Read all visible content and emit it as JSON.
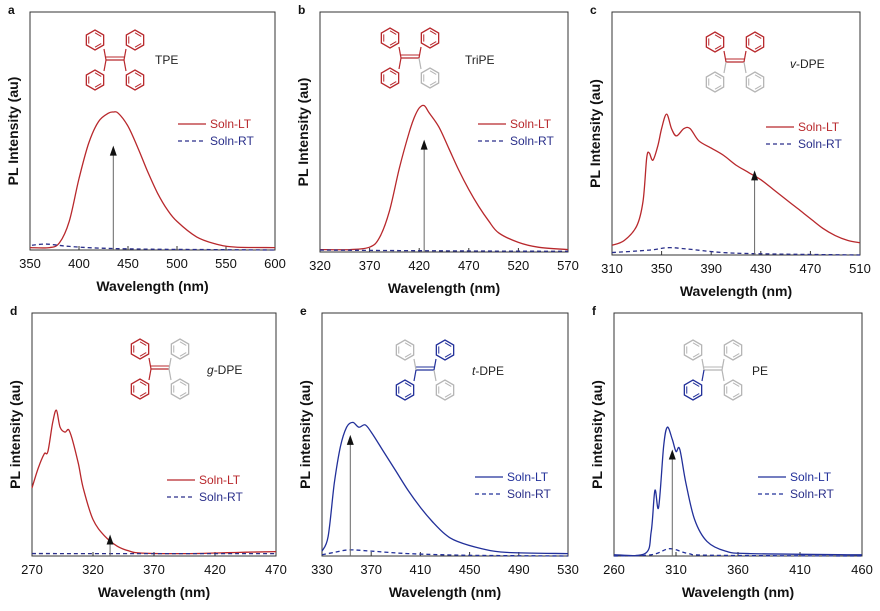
{
  "chart_data": [
    {
      "panel": "a",
      "type": "line",
      "compound": "TPE",
      "xlabel": "Wavelength (nm)",
      "ylabel": "PL Intensity (au)",
      "xlim": [
        350,
        600
      ],
      "xticks": [
        350,
        400,
        450,
        500,
        550,
        600
      ],
      "ylim": [
        0,
        1
      ],
      "series": [
        {
          "name": "Soln-LT",
          "style": "solid",
          "color": "#b8282c",
          "x": [
            350,
            370,
            380,
            390,
            400,
            410,
            420,
            430,
            435,
            440,
            450,
            460,
            470,
            480,
            490,
            500,
            520,
            540,
            560,
            600
          ],
          "y": [
            0.01,
            0.01,
            0.03,
            0.12,
            0.3,
            0.45,
            0.54,
            0.575,
            0.58,
            0.575,
            0.52,
            0.43,
            0.33,
            0.24,
            0.17,
            0.12,
            0.055,
            0.025,
            0.012,
            0.01
          ]
        },
        {
          "name": "Soln-RT",
          "style": "dashed",
          "color": "#2a2f8a",
          "x": [
            352,
            365,
            375,
            390,
            420,
            460,
            520,
            600
          ],
          "y": [
            0.02,
            0.025,
            0.022,
            0.015,
            0.008,
            0.004,
            0.002,
            0.0
          ]
        }
      ],
      "arrow_x": 435,
      "arrow_top": 0.43
    },
    {
      "panel": "b",
      "type": "line",
      "compound": "TriPE",
      "xlabel": "Wavelength (nm)",
      "ylabel": "PL Intensity (au)",
      "xlim": [
        320,
        570
      ],
      "xticks": [
        320,
        370,
        420,
        470,
        520,
        570
      ],
      "ylim": [
        0,
        1
      ],
      "series": [
        {
          "name": "Soln-LT",
          "style": "solid",
          "color": "#b8282c",
          "x": [
            320,
            350,
            370,
            380,
            390,
            400,
            410,
            415,
            420,
            425,
            430,
            440,
            450,
            460,
            470,
            480,
            490,
            500,
            520,
            540,
            570
          ],
          "y": [
            0.01,
            0.01,
            0.02,
            0.06,
            0.17,
            0.35,
            0.5,
            0.56,
            0.6,
            0.61,
            0.58,
            0.52,
            0.43,
            0.34,
            0.26,
            0.19,
            0.13,
            0.08,
            0.04,
            0.02,
            0.01
          ]
        },
        {
          "name": "Soln-RT",
          "style": "dashed",
          "color": "#2a2f8a",
          "x": [
            320,
            400,
            480,
            570
          ],
          "y": [
            0.008,
            0.006,
            0.004,
            0.003
          ]
        }
      ],
      "arrow_x": 425,
      "arrow_top": 0.46
    },
    {
      "panel": "c",
      "type": "line",
      "compound": "DPE",
      "compound_prefix": "v",
      "xlabel": "Wavelength (nm)",
      "ylabel": "PL Intensity (au)",
      "xlim": [
        310,
        510
      ],
      "xticks": [
        310,
        350,
        390,
        430,
        470,
        510
      ],
      "ylim": [
        0,
        1
      ],
      "series": [
        {
          "name": "Soln-LT",
          "style": "solid",
          "color": "#b8282c",
          "x": [
            310,
            320,
            330,
            335,
            338,
            340,
            343,
            347,
            350,
            354,
            358,
            362,
            368,
            373,
            380,
            390,
            400,
            410,
            420,
            430,
            440,
            450,
            460,
            470,
            480,
            490,
            500,
            510
          ],
          "y": [
            0.04,
            0.06,
            0.12,
            0.22,
            0.4,
            0.42,
            0.39,
            0.45,
            0.52,
            0.58,
            0.52,
            0.49,
            0.52,
            0.52,
            0.47,
            0.44,
            0.41,
            0.37,
            0.34,
            0.31,
            0.27,
            0.23,
            0.19,
            0.15,
            0.11,
            0.08,
            0.06,
            0.05
          ]
        },
        {
          "name": "Soln-RT",
          "style": "dashed",
          "color": "#2a2f8a",
          "x": [
            310,
            340,
            355,
            370,
            400,
            440,
            510
          ],
          "y": [
            0.01,
            0.02,
            0.03,
            0.025,
            0.01,
            0.004,
            0.0
          ]
        }
      ],
      "arrow_x": 425,
      "arrow_top": 0.34
    },
    {
      "panel": "d",
      "type": "line",
      "compound": "DPE",
      "compound_prefix": "g",
      "xlabel": "Wavelength (nm)",
      "ylabel": "PL intensity (au)",
      "xlim": [
        270,
        470
      ],
      "xticks": [
        270,
        320,
        370,
        420,
        470
      ],
      "ylim": [
        0,
        1
      ],
      "series": [
        {
          "name": "Soln-LT",
          "style": "solid",
          "color": "#b8282c",
          "x": [
            270,
            275,
            280,
            283,
            287,
            290,
            293,
            297,
            300,
            303,
            308,
            312,
            320,
            330,
            340,
            350,
            360,
            400,
            440,
            470
          ],
          "y": [
            0.28,
            0.36,
            0.42,
            0.43,
            0.55,
            0.6,
            0.53,
            0.51,
            0.52,
            0.48,
            0.38,
            0.28,
            0.15,
            0.08,
            0.04,
            0.02,
            0.012,
            0.01,
            0.015,
            0.018
          ]
        },
        {
          "name": "Soln-RT",
          "style": "dashed",
          "color": "#2a2f8a",
          "x": [
            270,
            370,
            470
          ],
          "y": [
            0.01,
            0.01,
            0.01
          ]
        }
      ],
      "arrow_x": 334,
      "arrow_top": 0.08
    },
    {
      "panel": "e",
      "type": "line",
      "compound": "DPE",
      "compound_prefix": "t",
      "xlabel": "Wavelength (nm)",
      "ylabel": "PL intensity (au)",
      "xlim": [
        330,
        530
      ],
      "xticks": [
        330,
        370,
        410,
        450,
        490,
        530
      ],
      "ylim": [
        0,
        1
      ],
      "series": [
        {
          "name": "Soln-LT",
          "style": "solid",
          "color": "#22309a",
          "x": [
            330,
            335,
            340,
            345,
            350,
            355,
            360,
            365,
            370,
            380,
            390,
            400,
            410,
            420,
            430,
            440,
            460,
            480,
            530
          ],
          "y": [
            0.02,
            0.08,
            0.3,
            0.45,
            0.53,
            0.55,
            0.53,
            0.54,
            0.51,
            0.43,
            0.35,
            0.27,
            0.2,
            0.14,
            0.09,
            0.06,
            0.03,
            0.015,
            0.01
          ]
        },
        {
          "name": "Soln-RT",
          "style": "dashed",
          "color": "#22309a",
          "x": [
            330,
            340,
            352,
            370,
            400,
            450,
            530
          ],
          "y": [
            0.005,
            0.015,
            0.025,
            0.02,
            0.01,
            0.003,
            0.0
          ]
        }
      ],
      "arrow_x": 353,
      "arrow_top": 0.49
    },
    {
      "panel": "f",
      "type": "line",
      "compound": "PE",
      "xlabel": "Wavelength (nm)",
      "ylabel": "PL intensity (au)",
      "xlim": [
        260,
        460
      ],
      "xticks": [
        260,
        310,
        360,
        410,
        460
      ],
      "ylim": [
        0,
        1
      ],
      "series": [
        {
          "name": "Soln-LT",
          "style": "solid",
          "color": "#22309a",
          "x": [
            260,
            285,
            290,
            293,
            296,
            300,
            303,
            307,
            310,
            313,
            318,
            325,
            335,
            350,
            370,
            460
          ],
          "y": [
            0.005,
            0.01,
            0.1,
            0.27,
            0.2,
            0.45,
            0.53,
            0.48,
            0.43,
            0.44,
            0.3,
            0.15,
            0.06,
            0.02,
            0.01,
            0.005
          ]
        },
        {
          "name": "Soln-RT",
          "style": "dashed",
          "color": "#22309a",
          "x": [
            260,
            290,
            305,
            320,
            340,
            460
          ],
          "y": [
            0.0,
            0.005,
            0.03,
            0.01,
            0.003,
            0.0
          ]
        }
      ],
      "arrow_x": 307,
      "arrow_top": 0.43
    }
  ],
  "colors": {
    "red": "#b8282c",
    "blue": "#22309a",
    "rt_text": "#2a2f8a",
    "gray": "#b5b5b5",
    "arrow": "#666666"
  }
}
